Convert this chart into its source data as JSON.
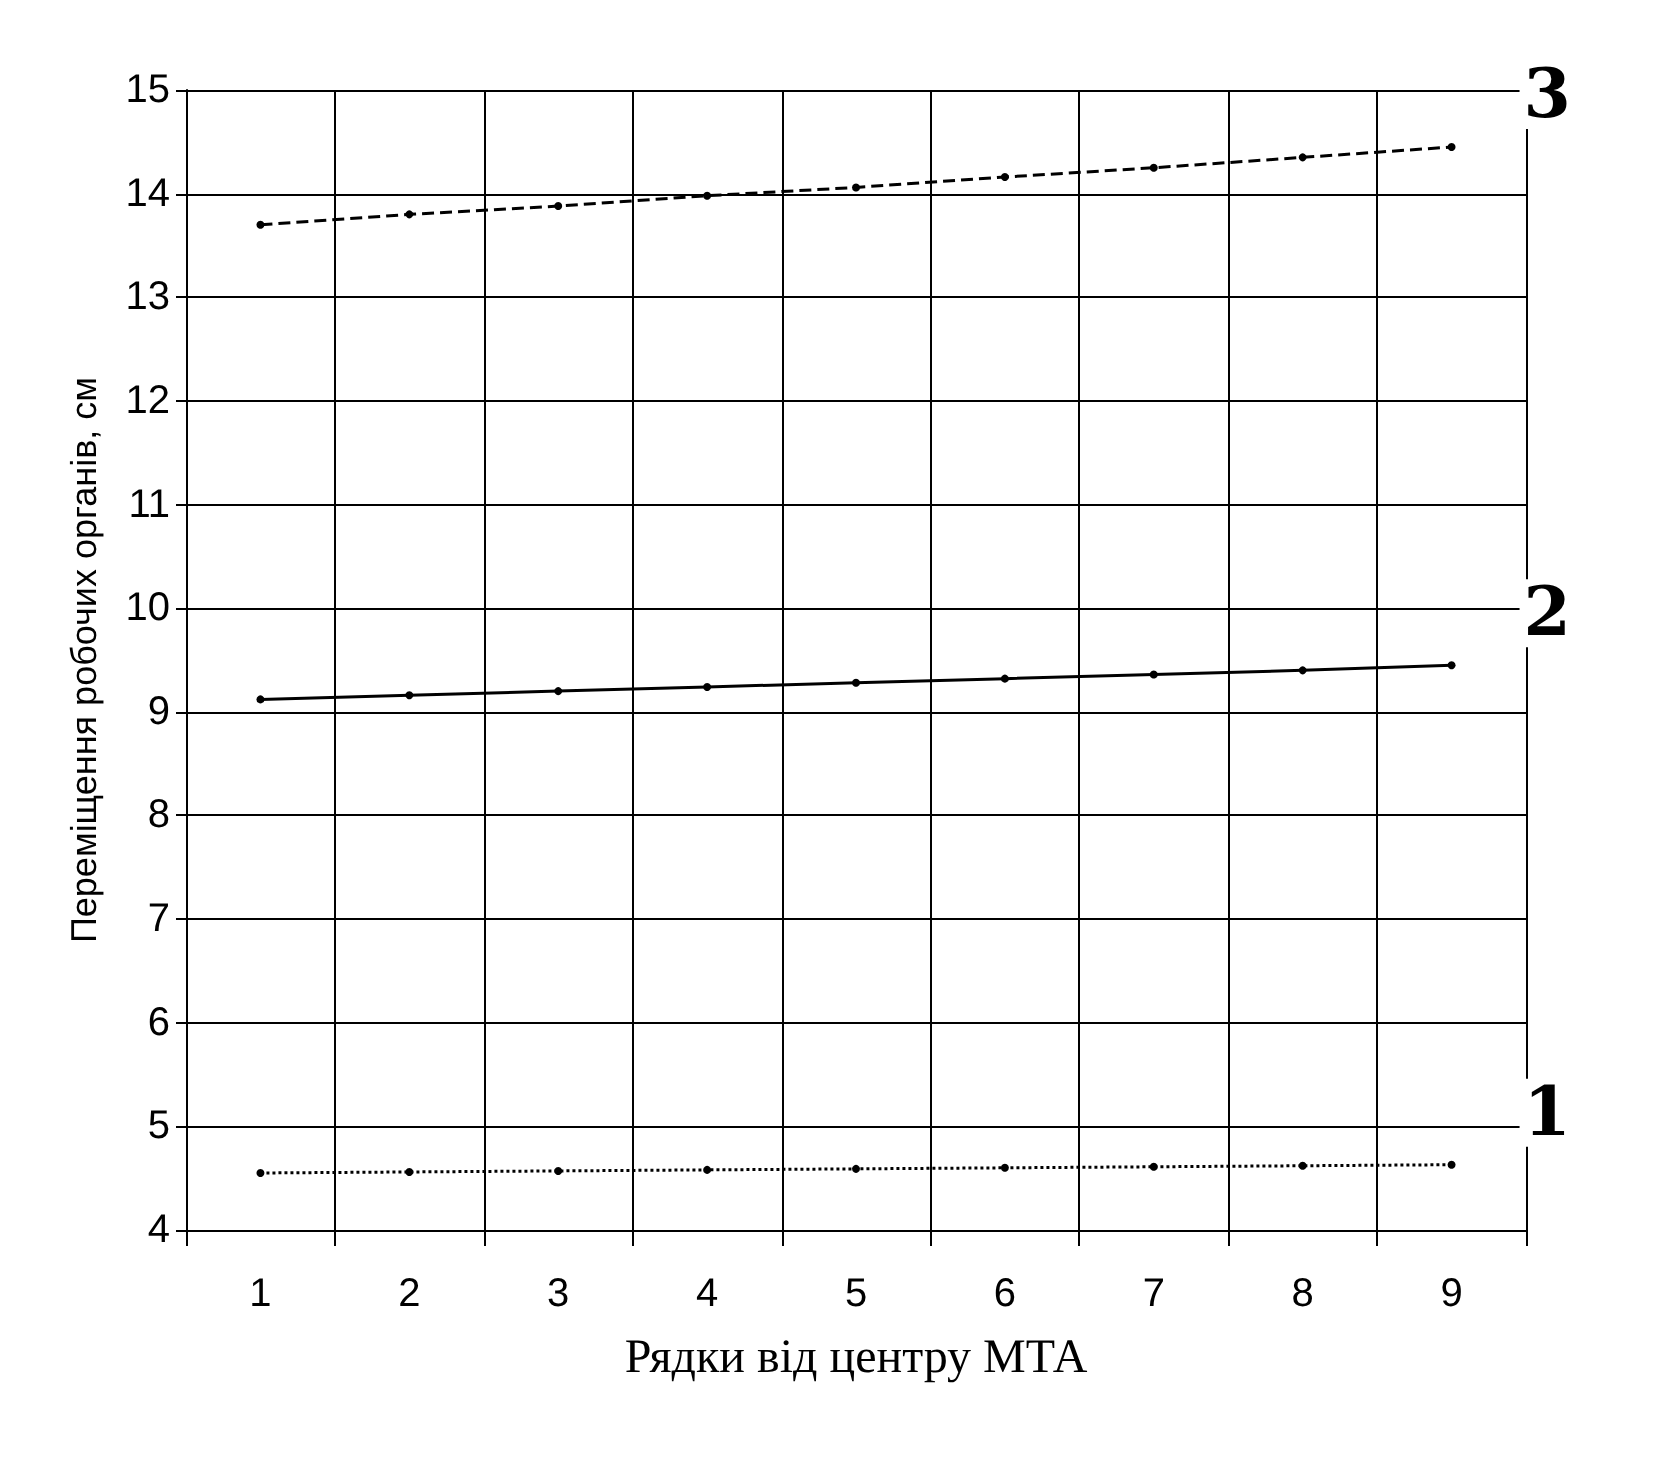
{
  "chart_data": {
    "type": "line",
    "xlabel": "Рядки від центру МТА",
    "ylabel": "Переміщення робочих органів, см",
    "categories": [
      "1",
      "2",
      "3",
      "4",
      "5",
      "6",
      "7",
      "8",
      "9"
    ],
    "series": [
      {
        "name": "3",
        "color": "#000000",
        "line_style": "dashed",
        "values": [
          13.7,
          13.8,
          13.88,
          13.98,
          14.06,
          14.16,
          14.25,
          14.35,
          14.45
        ]
      },
      {
        "name": "2",
        "color": "#000000",
        "line_style": "solid",
        "values": [
          9.12,
          9.16,
          9.2,
          9.24,
          9.28,
          9.32,
          9.36,
          9.4,
          9.45
        ]
      },
      {
        "name": "1",
        "color": "#000000",
        "line_style": "dotted",
        "values": [
          4.55,
          4.56,
          4.57,
          4.58,
          4.59,
          4.6,
          4.61,
          4.62,
          4.63
        ]
      }
    ],
    "ylim": [
      4,
      15
    ],
    "yticks": [
      4,
      5,
      6,
      7,
      8,
      9,
      10,
      11,
      12,
      13,
      14,
      15
    ],
    "grid": true,
    "marker": "circle",
    "legend": false
  }
}
